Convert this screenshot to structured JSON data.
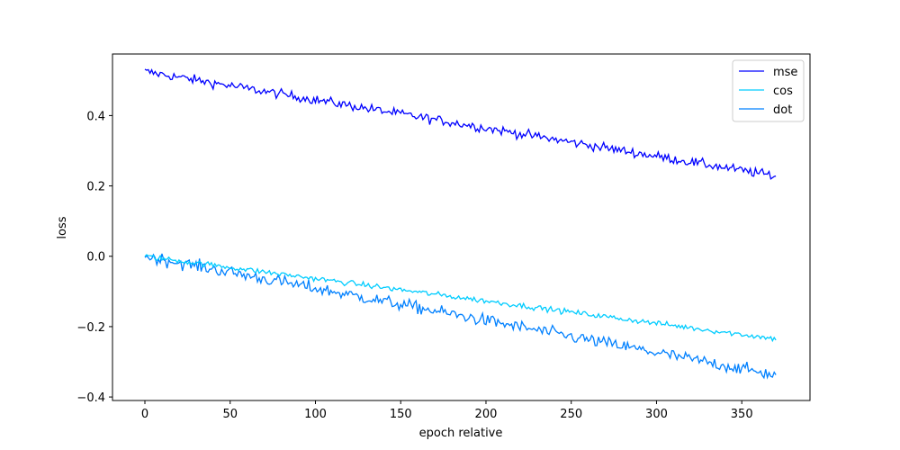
{
  "chart_data": {
    "type": "line",
    "title": "",
    "xlabel": "epoch relative",
    "ylabel": "loss",
    "xlim": [
      -19,
      390
    ],
    "ylim": [
      -0.41,
      0.575
    ],
    "xticks": [
      0,
      50,
      100,
      150,
      200,
      250,
      300,
      350
    ],
    "yticks": [
      -0.4,
      -0.2,
      0.0,
      0.2,
      0.4
    ],
    "xtick_labels": [
      "0",
      "50",
      "100",
      "150",
      "200",
      "250",
      "300",
      "350"
    ],
    "ytick_labels": [
      "−0.4",
      "−0.2",
      "0.0",
      "0.2",
      "0.4"
    ],
    "grid": false,
    "legend_position": "top-right",
    "x_range": [
      0,
      370
    ],
    "n_points": 371,
    "series": [
      {
        "name": "mse",
        "color": "#0000ff",
        "start": 0.525,
        "end": 0.228,
        "noise_amplitude": 0.012
      },
      {
        "name": "cos",
        "color": "#00ccff",
        "start": 0.0,
        "end": -0.235,
        "noise_amplitude": 0.007
      },
      {
        "name": "dot",
        "color": "#0080ff",
        "start": 0.0,
        "end": -0.338,
        "noise_amplitude": 0.016
      }
    ]
  }
}
